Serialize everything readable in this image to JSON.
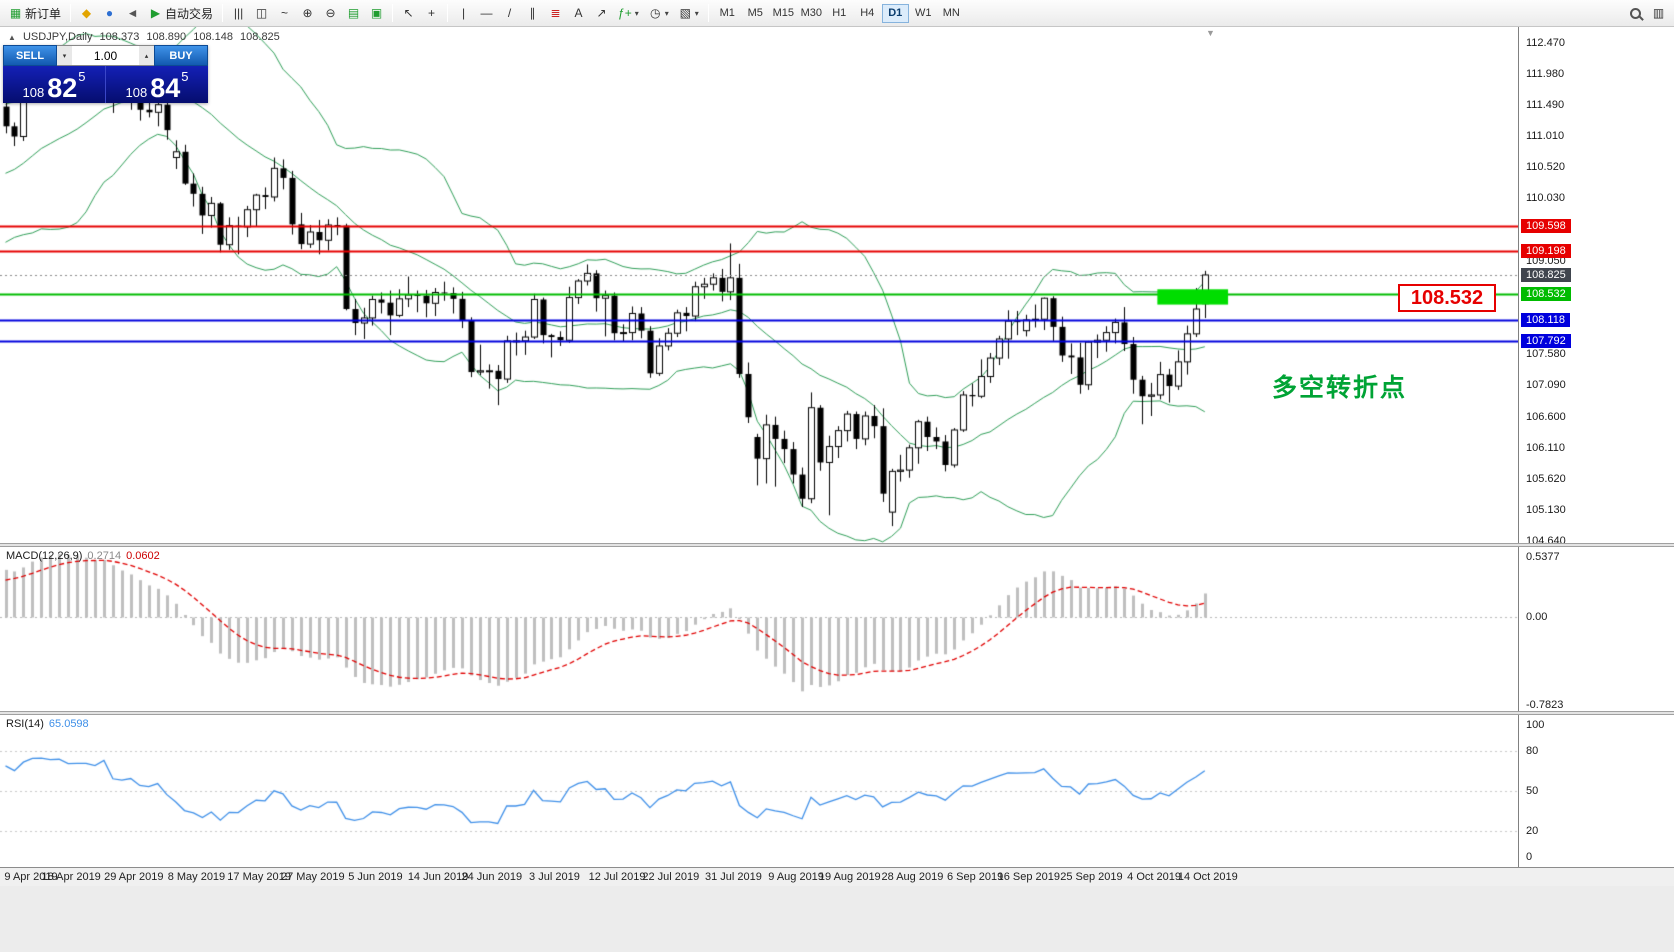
{
  "toolbar": {
    "new_order_label": "新订单",
    "auto_trading_label": "自动交易",
    "timeframes": [
      "M1",
      "M5",
      "M15",
      "M30",
      "H1",
      "H4",
      "D1",
      "W1",
      "MN"
    ],
    "active_timeframe": "D1"
  },
  "icons": {
    "new_order": "▦",
    "mql5": "◆",
    "community": "●",
    "sound": "◄",
    "autotrade_play": "▶",
    "bars_chart": "|||",
    "candles_chart": "◫",
    "line_chart": "~",
    "zoom_in": "⊕",
    "zoom_out": "⊖",
    "grid": "▤",
    "tile_windows": "▣",
    "cursor": "↖",
    "crosshair": "+",
    "vertical_line": "|",
    "horizontal_line": "—",
    "trend_line": "/",
    "channel": "∥",
    "fibonacci": "≣",
    "text_tool": "A",
    "arrow_tool": "↗",
    "indicators": "ƒ+",
    "periods": "◷",
    "template": "▧",
    "caret_down": "▾",
    "new_chart": "▥",
    "spin_up": "▴",
    "spin_down": "▾",
    "symbol_caret": "▲",
    "shift_marker": "▼"
  },
  "symbol_info": {
    "name_period": "USDJPY,Daily",
    "open": "108.373",
    "high": "108.890",
    "low": "108.148",
    "close": "108.825"
  },
  "trade_panel": {
    "sell_label": "SELL",
    "buy_label": "BUY",
    "volume": "1.00",
    "sell_price": {
      "big_figure": "108",
      "pips": "82",
      "sub_pip": "5"
    },
    "buy_price": {
      "big_figure": "108",
      "pips": "84",
      "sub_pip": "5"
    }
  },
  "annotations": {
    "price_callout": "108.532",
    "turning_point": "多空转折点"
  },
  "price_axis": {
    "ticks": [
      "112.470",
      "111.980",
      "111.490",
      "111.010",
      "110.520",
      "110.030",
      "109.050",
      "107.580",
      "107.090",
      "106.600",
      "106.110",
      "105.620",
      "105.130",
      "104.640"
    ],
    "tags": [
      {
        "text": "109.598",
        "color": "#e60000"
      },
      {
        "text": "109.198",
        "color": "#e60000"
      },
      {
        "text": "108.825",
        "color": "#40454e"
      },
      {
        "text": "108.532",
        "color": "#00bb00"
      },
      {
        "text": "108.118",
        "color": "#0000dd"
      },
      {
        "text": "107.792",
        "color": "#0000dd"
      }
    ]
  },
  "macd_panel": {
    "name": "MACD(12,26,9)",
    "value_main": "0.2714",
    "value_signal": "0.0602",
    "axis_labels": [
      "0.5377",
      "0.00",
      "-0.7823"
    ]
  },
  "rsi_panel": {
    "name": "RSI(14)",
    "value": "65.0598",
    "axis_labels": [
      "100",
      "80",
      "50",
      "20",
      "0"
    ]
  },
  "time_axis": {
    "labels": [
      {
        "index": 0,
        "text": "9 Apr 2019"
      },
      {
        "index": 7,
        "text": "18 Apr 2019"
      },
      {
        "index": 14,
        "text": "29 Apr 2019"
      },
      {
        "index": 21,
        "text": "8 May 2019"
      },
      {
        "index": 28,
        "text": "17 May 2019"
      },
      {
        "index": 34,
        "text": "27 May 2019"
      },
      {
        "index": 41,
        "text": "5 Jun 2019"
      },
      {
        "index": 48,
        "text": "14 Jun 2019"
      },
      {
        "index": 54,
        "text": "24 Jun 2019"
      },
      {
        "index": 61,
        "text": "3 Jul 2019"
      },
      {
        "index": 68,
        "text": "12 Jul 2019"
      },
      {
        "index": 74,
        "text": "22 Jul 2019"
      },
      {
        "index": 81,
        "text": "31 Jul 2019"
      },
      {
        "index": 88,
        "text": "9 Aug 2019"
      },
      {
        "index": 94,
        "text": "19 Aug 2019"
      },
      {
        "index": 101,
        "text": "28 Aug 2019"
      },
      {
        "index": 108,
        "text": "6 Sep 2019"
      },
      {
        "index": 114,
        "text": "16 Sep 2019"
      },
      {
        "index": 121,
        "text": "25 Sep 2019"
      },
      {
        "index": 128,
        "text": "4 Oct 2019"
      },
      {
        "index": 134,
        "text": "14 Oct 2019"
      }
    ]
  },
  "chart_data": {
    "type": "candlestick",
    "symbol": "USDJPY",
    "timeframe": "Daily",
    "ylim": [
      104.615,
      112.72
    ],
    "seed_closes": [
      109.38,
      109.77,
      109.72,
      109.7,
      109.74,
      110.44,
      110.47,
      110.51,
      110.31,
      109.92,
      109.74,
      110.01,
      110.64,
      110.45,
      110.54,
      110.68,
      110.86,
      111.05,
      111.26,
      111.47
    ],
    "candles": [
      [
        111.47,
        111.58,
        111.05,
        111.16
      ],
      [
        111.16,
        111.22,
        110.85,
        111.0
      ],
      [
        111.0,
        111.69,
        110.93,
        111.65
      ],
      [
        111.65,
        112.09,
        111.57,
        112.02
      ],
      [
        112.02,
        112.09,
        111.86,
        112.04
      ],
      [
        112.04,
        112.13,
        111.83,
        111.99
      ],
      [
        111.99,
        112.16,
        111.85,
        112.03
      ],
      [
        112.03,
        112.09,
        111.76,
        111.9
      ],
      [
        111.9,
        111.96,
        111.8,
        111.92
      ],
      [
        111.92,
        111.98,
        111.75,
        111.92
      ],
      [
        111.92,
        111.96,
        111.64,
        111.86
      ],
      [
        111.86,
        112.4,
        111.66,
        112.19
      ],
      [
        112.19,
        112.29,
        111.37,
        111.63
      ],
      [
        111.63,
        111.92,
        111.54,
        111.58
      ],
      [
        111.58,
        111.78,
        111.42,
        111.66
      ],
      [
        111.66,
        111.7,
        111.25,
        111.42
      ],
      [
        111.42,
        111.59,
        111.3,
        111.38
      ],
      [
        111.38,
        111.56,
        111.16,
        111.5
      ],
      [
        111.5,
        111.57,
        110.95,
        111.1
      ],
      [
        110.67,
        110.94,
        110.49,
        110.76
      ],
      [
        110.76,
        110.87,
        110.24,
        110.26
      ],
      [
        110.26,
        110.42,
        109.9,
        110.1
      ],
      [
        110.1,
        110.21,
        109.47,
        109.76
      ],
      [
        109.76,
        110.05,
        109.57,
        109.95
      ],
      [
        109.95,
        109.97,
        109.18,
        109.3
      ],
      [
        109.3,
        109.73,
        109.22,
        109.6
      ],
      [
        109.6,
        109.74,
        109.15,
        109.58
      ],
      [
        109.58,
        109.91,
        109.42,
        109.85
      ],
      [
        109.85,
        110.1,
        109.58,
        110.08
      ],
      [
        110.08,
        110.2,
        109.86,
        110.05
      ],
      [
        110.05,
        110.67,
        109.98,
        110.5
      ],
      [
        110.5,
        110.64,
        110.17,
        110.35
      ],
      [
        110.35,
        110.46,
        109.46,
        109.62
      ],
      [
        109.62,
        109.8,
        109.23,
        109.31
      ],
      [
        109.31,
        109.61,
        109.25,
        109.5
      ],
      [
        109.5,
        109.69,
        109.15,
        109.37
      ],
      [
        109.37,
        109.7,
        109.21,
        109.61
      ],
      [
        109.61,
        109.73,
        109.45,
        109.6
      ],
      [
        109.6,
        109.63,
        108.27,
        108.29
      ],
      [
        108.29,
        108.45,
        107.88,
        108.07
      ],
      [
        108.07,
        108.31,
        107.82,
        108.15
      ],
      [
        108.15,
        108.5,
        108.03,
        108.44
      ],
      [
        108.44,
        108.55,
        108.22,
        108.39
      ],
      [
        108.39,
        108.58,
        107.88,
        108.19
      ],
      [
        108.19,
        108.6,
        108.16,
        108.45
      ],
      [
        108.45,
        108.8,
        108.32,
        108.51
      ],
      [
        108.51,
        108.58,
        108.24,
        108.5
      ],
      [
        108.5,
        108.59,
        108.16,
        108.38
      ],
      [
        108.38,
        108.62,
        108.18,
        108.55
      ],
      [
        108.55,
        108.72,
        108.42,
        108.54
      ],
      [
        108.54,
        108.63,
        108.22,
        108.45
      ],
      [
        108.45,
        108.56,
        107.99,
        108.11
      ],
      [
        108.11,
        108.16,
        107.22,
        107.3
      ],
      [
        107.3,
        107.73,
        107.25,
        107.32
      ],
      [
        107.32,
        107.42,
        107.04,
        107.32
      ],
      [
        107.32,
        107.41,
        106.78,
        107.19
      ],
      [
        107.19,
        107.87,
        107.13,
        107.79
      ],
      [
        107.79,
        107.92,
        107.56,
        107.79
      ],
      [
        107.79,
        107.95,
        107.57,
        107.85
      ],
      [
        107.85,
        108.53,
        107.82,
        108.44
      ],
      [
        108.44,
        108.47,
        107.75,
        107.88
      ],
      [
        107.88,
        107.9,
        107.53,
        107.85
      ],
      [
        107.85,
        107.94,
        107.71,
        107.8
      ],
      [
        107.8,
        108.64,
        107.76,
        108.47
      ],
      [
        108.47,
        108.76,
        108.37,
        108.73
      ],
      [
        108.73,
        108.99,
        108.66,
        108.85
      ],
      [
        108.85,
        108.9,
        108.25,
        108.46
      ],
      [
        108.46,
        108.58,
        107.86,
        108.5
      ],
      [
        108.5,
        108.55,
        107.8,
        107.91
      ],
      [
        107.91,
        108.05,
        107.78,
        107.92
      ],
      [
        107.92,
        108.33,
        107.8,
        108.22
      ],
      [
        108.22,
        108.32,
        107.83,
        107.95
      ],
      [
        107.95,
        108.02,
        107.21,
        107.28
      ],
      [
        107.28,
        107.83,
        107.24,
        107.71
      ],
      [
        107.71,
        107.99,
        107.64,
        107.91
      ],
      [
        107.91,
        108.28,
        107.85,
        108.23
      ],
      [
        108.23,
        108.32,
        107.94,
        108.18
      ],
      [
        108.18,
        108.72,
        108.1,
        108.64
      ],
      [
        108.64,
        108.78,
        108.45,
        108.68
      ],
      [
        108.68,
        108.85,
        108.58,
        108.78
      ],
      [
        108.78,
        108.92,
        108.41,
        108.56
      ],
      [
        108.56,
        109.32,
        108.43,
        108.78
      ],
      [
        108.78,
        109.0,
        107.21,
        107.27
      ],
      [
        107.27,
        107.45,
        106.5,
        106.59
      ],
      [
        106.28,
        106.33,
        105.52,
        105.94
      ],
      [
        105.94,
        106.63,
        105.55,
        106.47
      ],
      [
        106.47,
        106.6,
        105.5,
        106.25
      ],
      [
        106.25,
        106.38,
        105.87,
        106.09
      ],
      [
        106.09,
        106.2,
        105.55,
        105.69
      ],
      [
        105.69,
        105.8,
        105.18,
        105.31
      ],
      [
        105.31,
        106.98,
        105.24,
        106.74
      ],
      [
        106.74,
        106.78,
        105.75,
        105.88
      ],
      [
        105.88,
        106.3,
        105.05,
        106.13
      ],
      [
        106.13,
        106.45,
        105.95,
        106.38
      ],
      [
        106.38,
        106.69,
        106.21,
        106.64
      ],
      [
        106.64,
        106.68,
        106.09,
        106.25
      ],
      [
        106.25,
        106.68,
        106.15,
        106.61
      ],
      [
        106.61,
        106.78,
        106.26,
        106.45
      ],
      [
        106.45,
        106.73,
        105.26,
        105.39
      ],
      [
        105.1,
        105.78,
        104.88,
        105.74
      ],
      [
        105.74,
        106.0,
        105.58,
        105.76
      ],
      [
        105.76,
        106.16,
        105.64,
        106.11
      ],
      [
        106.11,
        106.55,
        105.86,
        106.52
      ],
      [
        106.52,
        106.6,
        106.06,
        106.28
      ],
      [
        106.28,
        106.43,
        106.09,
        106.21
      ],
      [
        106.21,
        106.31,
        105.74,
        105.84
      ],
      [
        105.84,
        106.42,
        105.8,
        106.39
      ],
      [
        106.39,
        107.0,
        106.36,
        106.94
      ],
      [
        106.94,
        107.12,
        106.76,
        106.92
      ],
      [
        106.92,
        107.5,
        106.89,
        107.23
      ],
      [
        107.23,
        107.6,
        107.13,
        107.52
      ],
      [
        107.52,
        107.87,
        107.41,
        107.82
      ],
      [
        107.82,
        108.27,
        107.51,
        108.1
      ],
      [
        108.1,
        108.26,
        107.88,
        108.09
      ],
      [
        107.95,
        108.2,
        107.86,
        108.12
      ],
      [
        108.12,
        108.36,
        108.0,
        108.13
      ],
      [
        108.13,
        108.47,
        107.96,
        108.46
      ],
      [
        108.46,
        108.49,
        107.79,
        108.01
      ],
      [
        108.01,
        108.17,
        107.46,
        107.56
      ],
      [
        107.56,
        107.75,
        107.27,
        107.53
      ],
      [
        107.53,
        107.76,
        106.96,
        107.1
      ],
      [
        107.1,
        107.79,
        107.02,
        107.77
      ],
      [
        107.77,
        107.89,
        107.52,
        107.8
      ],
      [
        107.8,
        108.02,
        107.62,
        107.92
      ],
      [
        107.92,
        108.14,
        107.75,
        108.08
      ],
      [
        108.08,
        108.32,
        107.63,
        107.74
      ],
      [
        107.74,
        107.85,
        106.96,
        107.18
      ],
      [
        107.18,
        107.24,
        106.48,
        106.92
      ],
      [
        106.92,
        107.13,
        106.61,
        106.94
      ],
      [
        106.94,
        107.46,
        106.87,
        107.26
      ],
      [
        107.26,
        107.35,
        106.82,
        107.08
      ],
      [
        107.08,
        107.64,
        107.02,
        107.46
      ],
      [
        107.46,
        108.03,
        107.26,
        107.9
      ],
      [
        107.9,
        108.62,
        107.85,
        108.29
      ],
      [
        108.373,
        108.89,
        108.148,
        108.825
      ]
    ],
    "bollinger": {
      "period": 20,
      "deviation": 2,
      "color": "#2e9e57"
    },
    "hlines": [
      {
        "price": 109.598,
        "color": "#e60000",
        "width": 2
      },
      {
        "price": 109.198,
        "color": "#e60000",
        "width": 2
      },
      {
        "price": 108.532,
        "color": "#00bb00",
        "width": 2
      },
      {
        "price": 108.118,
        "color": "#0000dd",
        "width": 2
      },
      {
        "price": 107.792,
        "color": "#0000dd",
        "width": 2
      }
    ],
    "bid_line": {
      "price": 108.825,
      "color": "#8a8a8a"
    },
    "highlight_box": {
      "from_index": 128.7,
      "to_index": 136.6,
      "top": 108.6,
      "bottom": 108.36,
      "color": "#00dd00"
    },
    "macd": {
      "fast": 12,
      "slow": 26,
      "signal": 9,
      "ylim": [
        -0.84,
        0.63
      ],
      "histogram_color": "#bfbfbf",
      "signal_color": "#e00000"
    },
    "rsi": {
      "period": 14,
      "color": "#3e8fe8",
      "levels": [
        80,
        50,
        20
      ]
    }
  }
}
